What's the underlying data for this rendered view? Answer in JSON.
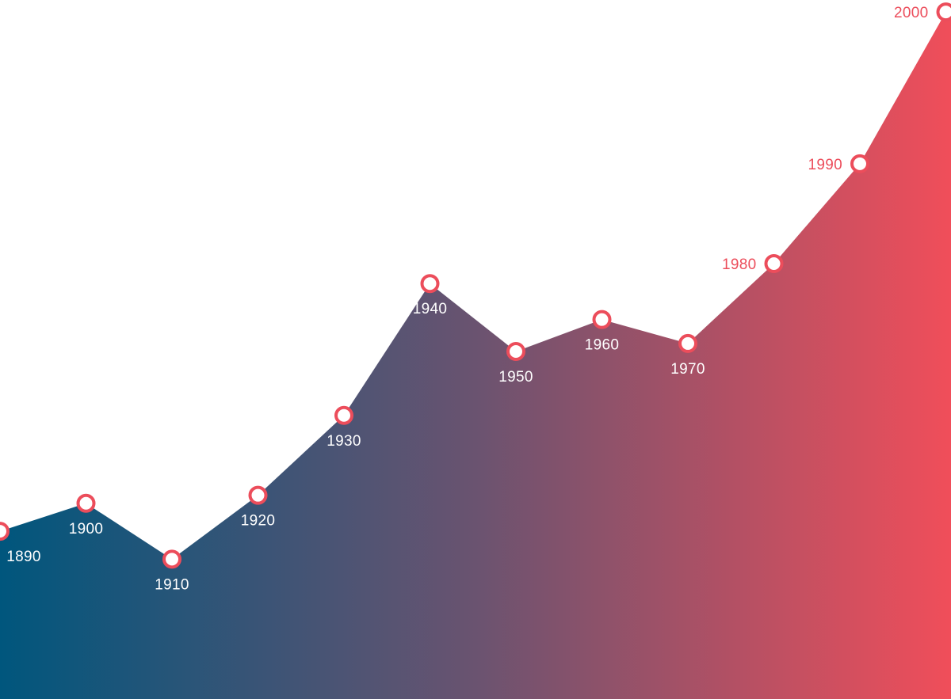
{
  "chart_data": {
    "type": "area",
    "title": "",
    "xlabel": "",
    "ylabel": "",
    "x": [
      "1890",
      "1900",
      "1910",
      "1920",
      "1930",
      "1940",
      "1950",
      "1960",
      "1970",
      "1980",
      "1990",
      "2000"
    ],
    "values": [
      18,
      21.5,
      14.5,
      22.5,
      32.5,
      49,
      40.5,
      44.5,
      41.5,
      51.5,
      64,
      83
    ],
    "ylim": [
      -3,
      84.5
    ],
    "grid": false,
    "legend": "none",
    "label_colors": {
      "inside": "#ffffff",
      "outside": "#ec4d5b"
    },
    "label_inside_area": [
      true,
      true,
      true,
      true,
      true,
      true,
      true,
      true,
      true,
      false,
      false,
      false
    ],
    "colors": {
      "gradient_start": "#00567d",
      "gradient_mid": "#6a5370",
      "gradient_end": "#f04e5a",
      "marker_stroke": "#ec4d5b",
      "marker_fill": "#ffffff"
    }
  }
}
